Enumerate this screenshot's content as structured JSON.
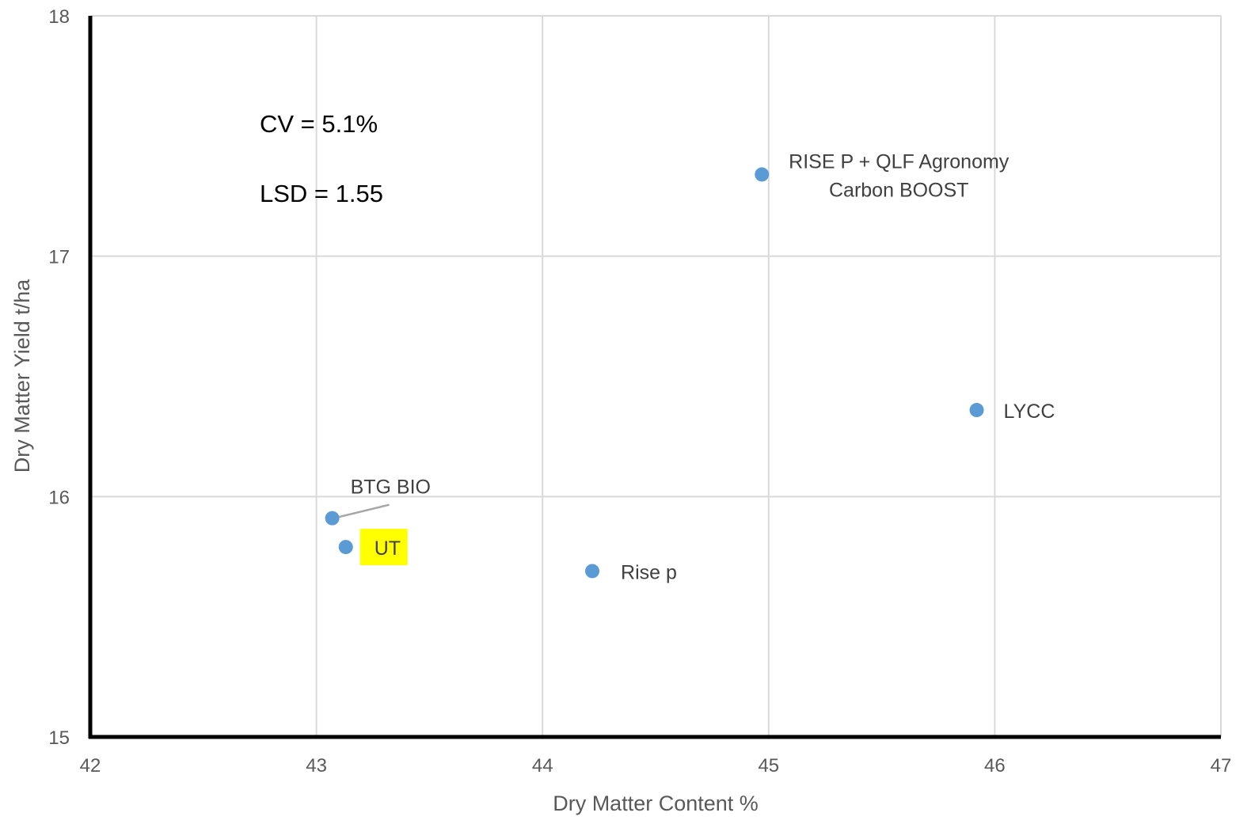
{
  "chart_data": {
    "type": "scatter",
    "xlabel": "Dry Matter Content %",
    "ylabel": "Dry Matter Yield t/ha",
    "xlim": [
      42,
      47
    ],
    "ylim": [
      15,
      18
    ],
    "xticks": [
      "42",
      "43",
      "44",
      "45",
      "46",
      "47"
    ],
    "yticks": [
      "15",
      "16",
      "17",
      "18"
    ],
    "grid": true,
    "legend": "none",
    "points": [
      {
        "label": "BTG BIO",
        "x": 43.07,
        "y": 15.91
      },
      {
        "label": "UT",
        "x": 43.13,
        "y": 15.79,
        "highlight": "#ffff00"
      },
      {
        "label": "Rise p",
        "x": 44.22,
        "y": 15.69
      },
      {
        "label": "RISE P + QLF Agronomy Carbon BOOST",
        "x": 44.97,
        "y": 17.34
      },
      {
        "label": "LYCC",
        "x": 45.92,
        "y": 16.36
      }
    ],
    "annotations": [
      "CV = 5.1%",
      "LSD = 1.55"
    ],
    "marker_color": "#5b9bd5",
    "grid_color": "#d9d9d9",
    "axis_color": "#000000"
  }
}
